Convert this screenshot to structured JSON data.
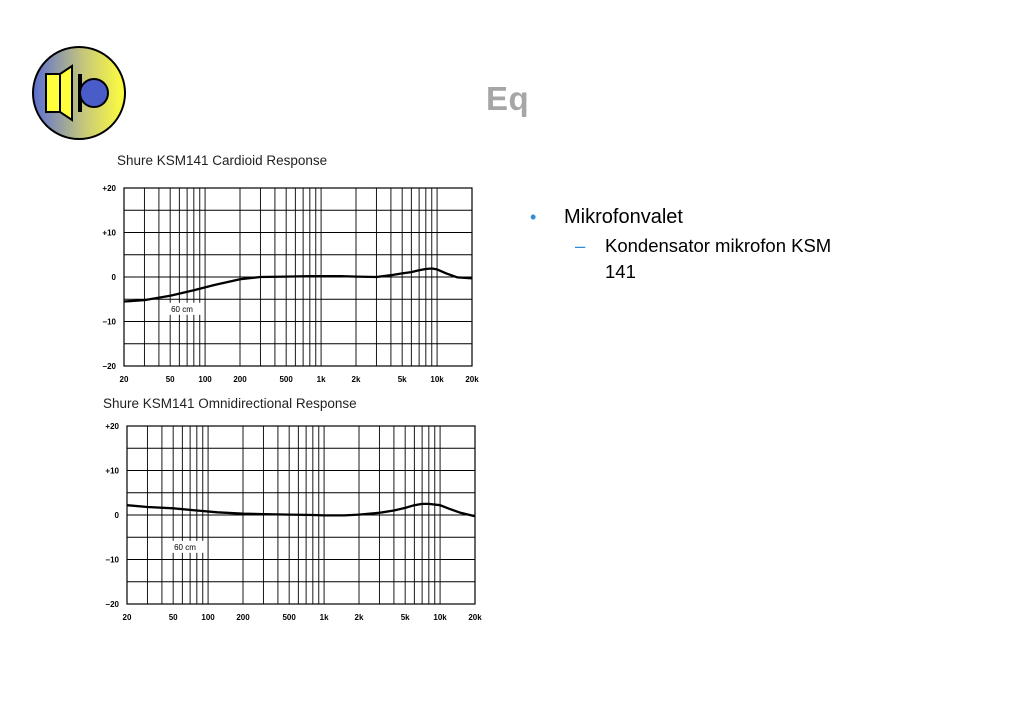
{
  "slide": {
    "title": "Eq",
    "logo_icon": "speaker-icon"
  },
  "bullets": {
    "level1": {
      "marker": "•",
      "text": "Mikrofonvalet"
    },
    "level2": {
      "marker": "–",
      "text": "Kondensator mikrofon KSM 141"
    }
  },
  "colors": {
    "title_gray": "#a6a6a6",
    "bullet_blue": "#2e8bd6",
    "logo_yellow": "#ffff3c",
    "logo_blue": "#4a5cc8"
  },
  "chart_data": [
    {
      "type": "line",
      "title": "Shure KSM141 Cardioid Response",
      "xscale": "log",
      "xlim": [
        20,
        20000
      ],
      "ylim": [
        -20,
        20
      ],
      "x_tick_labels": [
        "20",
        "50",
        "100",
        "200",
        "500",
        "1k",
        "2k",
        "5k",
        "10k",
        "20k"
      ],
      "x_tick_values": [
        20,
        50,
        100,
        200,
        500,
        1000,
        2000,
        5000,
        10000,
        20000
      ],
      "y_tick_labels": [
        "+20",
        "+10",
        "0",
        "−10",
        "−20"
      ],
      "y_tick_values": [
        20,
        10,
        0,
        -10,
        -20
      ],
      "annotation": "60 cm",
      "grid": true,
      "series": [
        {
          "x": [
            20,
            30,
            50,
            80,
            120,
            200,
            300,
            500,
            800,
            1000,
            1500,
            2000,
            3000,
            4000,
            5000,
            6000,
            7000,
            8000,
            9000,
            10000,
            12000,
            15000,
            20000
          ],
          "values": [
            -5.5,
            -5.2,
            -4.2,
            -3.0,
            -1.8,
            -0.5,
            0,
            0.1,
            0.2,
            0.2,
            0.2,
            0.1,
            0,
            0.4,
            0.8,
            1.1,
            1.5,
            1.8,
            1.9,
            1.7,
            0.8,
            -0.1,
            -0.3
          ]
        }
      ]
    },
    {
      "type": "line",
      "title": "Shure KSM141 Omnidirectional Response",
      "xscale": "log",
      "xlim": [
        20,
        20000
      ],
      "ylim": [
        -20,
        20
      ],
      "x_tick_labels": [
        "20",
        "50",
        "100",
        "200",
        "500",
        "1k",
        "2k",
        "5k",
        "10k",
        "20k"
      ],
      "x_tick_values": [
        20,
        50,
        100,
        200,
        500,
        1000,
        2000,
        5000,
        10000,
        20000
      ],
      "y_tick_labels": [
        "+20",
        "+10",
        "0",
        "−10",
        "−20"
      ],
      "y_tick_values": [
        20,
        10,
        0,
        -10,
        -20
      ],
      "annotation": "60 cm",
      "grid": true,
      "series": [
        {
          "x": [
            20,
            30,
            50,
            80,
            120,
            200,
            300,
            500,
            800,
            1000,
            1500,
            2000,
            3000,
            4000,
            5000,
            6000,
            7000,
            8000,
            10000,
            12000,
            15000,
            20000
          ],
          "values": [
            2.2,
            1.8,
            1.5,
            1.0,
            0.6,
            0.3,
            0.2,
            0.1,
            0,
            -0.1,
            -0.1,
            0.1,
            0.5,
            1.0,
            1.6,
            2.2,
            2.5,
            2.5,
            2.2,
            1.4,
            0.5,
            -0.3
          ]
        }
      ]
    }
  ]
}
